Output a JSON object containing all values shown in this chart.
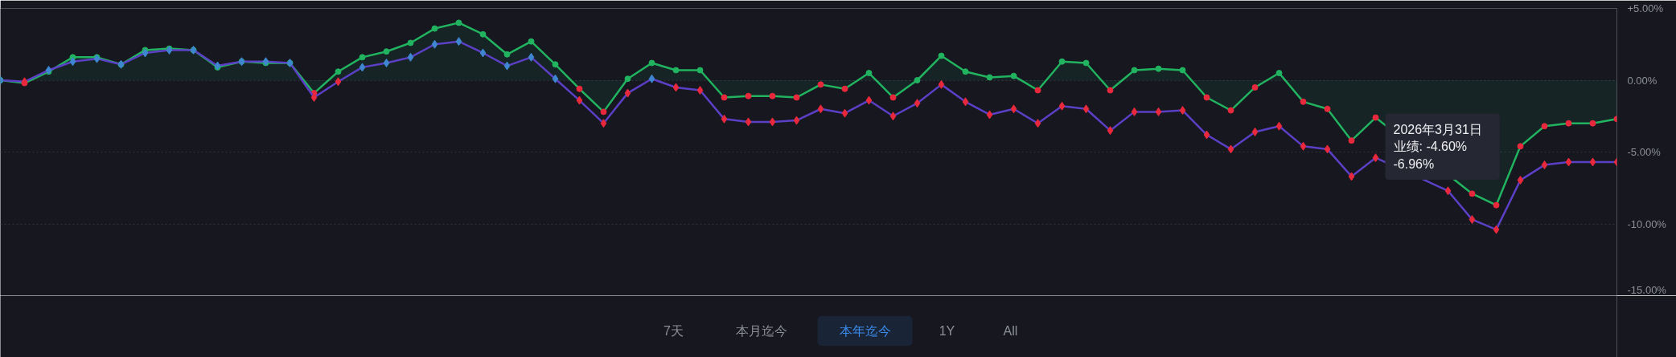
{
  "chart_data": {
    "type": "line",
    "categories": [
      null,
      null,
      null,
      null,
      null,
      null,
      null,
      null,
      null,
      null,
      null,
      null,
      null,
      null,
      null,
      null,
      null,
      null,
      null,
      null,
      null,
      null,
      null,
      null,
      null,
      null,
      null,
      null,
      null,
      null,
      null,
      null,
      null,
      null,
      null,
      null,
      null,
      null,
      null,
      null,
      null,
      null,
      null,
      null,
      null,
      null,
      null,
      null,
      null,
      null,
      null,
      null,
      null,
      null,
      null,
      null,
      null,
      null,
      null,
      null,
      null,
      null,
      null,
      null,
      null,
      null,
      null,
      null
    ],
    "ylim": [
      -15,
      5
    ],
    "yticks": [
      {
        "value": 5,
        "label": "+5.00%"
      },
      {
        "value": 0,
        "label": "0.00%"
      },
      {
        "value": -5,
        "label": "-5.00%"
      },
      {
        "value": -10,
        "label": "-10.00%"
      },
      {
        "value": -15,
        "label": "-15.00%"
      }
    ],
    "grid": "y",
    "tick_labels": "y",
    "series": [
      {
        "type": "area",
        "marker": "circle",
        "color": "#21b35f",
        "values": [
          0.0,
          -0.2,
          0.6,
          1.6,
          1.6,
          1.1,
          2.1,
          2.2,
          2.1,
          0.9,
          1.3,
          1.2,
          1.2,
          -0.9,
          0.6,
          1.6,
          2.0,
          2.6,
          3.6,
          4.0,
          3.2,
          1.8,
          2.7,
          1.1,
          -0.6,
          -2.2,
          0.1,
          1.2,
          0.7,
          0.7,
          -1.2,
          -1.1,
          -1.1,
          -1.2,
          -0.3,
          -0.6,
          0.5,
          -1.2,
          0.0,
          1.7,
          0.6,
          0.2,
          0.3,
          -0.7,
          1.3,
          1.2,
          -0.7,
          0.7,
          0.8,
          0.7,
          -1.2,
          -2.1,
          -0.5,
          0.5,
          -1.5,
          -2.0,
          -4.2,
          -2.6,
          null,
          null,
          null,
          -7.9,
          -8.7,
          -4.6,
          -3.2,
          -3.0,
          -3.0,
          -2.7
        ],
        "colors": [
          "#21b35f",
          "#e8283c",
          "#21b35f",
          "#21b35f",
          "#21b35f",
          "#21b35f",
          "#21b35f",
          "#21b35f",
          "#21b35f",
          "#21b35f",
          "#21b35f",
          "#21b35f",
          "#21b35f",
          "#e8283c",
          "#21b35f",
          "#21b35f",
          "#21b35f",
          "#21b35f",
          "#21b35f",
          "#21b35f",
          "#21b35f",
          "#21b35f",
          "#21b35f",
          "#21b35f",
          "#e8283c",
          "#e8283c",
          "#21b35f",
          "#21b35f",
          "#21b35f",
          "#21b35f",
          "#e8283c",
          "#e8283c",
          "#e8283c",
          "#e8283c",
          "#e8283c",
          "#e8283c",
          "#21b35f",
          "#e8283c",
          "#21b35f",
          "#21b35f",
          "#21b35f",
          "#21b35f",
          "#21b35f",
          "#e8283c",
          "#21b35f",
          "#21b35f",
          "#e8283c",
          "#21b35f",
          "#21b35f",
          "#21b35f",
          "#e8283c",
          "#e8283c",
          "#e8283c",
          "#21b35f",
          "#e8283c",
          "#e8283c",
          "#e8283c",
          "#e8283c",
          null,
          null,
          null,
          "#e8283c",
          "#e8283c",
          "#e8283c",
          "#e8283c",
          "#e8283c",
          "#e8283c",
          "#e8283c"
        ]
      },
      {
        "marker": "diamond",
        "color": "#5b3fc4",
        "values": [
          0.0,
          -0.1,
          0.7,
          1.3,
          1.5,
          1.1,
          1.9,
          2.1,
          2.1,
          1.0,
          1.3,
          1.3,
          1.2,
          -1.2,
          -0.1,
          0.9,
          1.2,
          1.6,
          2.5,
          2.7,
          1.9,
          1.0,
          1.6,
          0.1,
          -1.4,
          -3.0,
          -0.9,
          0.1,
          -0.5,
          -0.7,
          -2.7,
          -2.9,
          -2.9,
          -2.8,
          -2.0,
          -2.3,
          -1.4,
          -2.5,
          -1.6,
          -0.3,
          -1.5,
          -2.4,
          -2.0,
          -3.0,
          -1.8,
          -2.0,
          -3.5,
          -2.2,
          -2.2,
          -2.1,
          -3.8,
          -4.8,
          -3.6,
          -3.2,
          -4.6,
          -4.8,
          -6.7,
          -5.4,
          null,
          null,
          -7.7,
          -9.7,
          -10.4,
          -6.96,
          -5.9,
          -5.7,
          -5.7,
          -5.7
        ],
        "colors": [
          "#3f86d0",
          "#e8283c",
          "#3f86d0",
          "#3f86d0",
          "#3f86d0",
          "#3f86d0",
          "#3f86d0",
          "#3f86d0",
          "#3f86d0",
          "#3f86d0",
          "#3f86d0",
          "#3f86d0",
          "#3f86d0",
          "#e8283c",
          "#e8283c",
          "#3f86d0",
          "#3f86d0",
          "#3f86d0",
          "#3f86d0",
          "#3f86d0",
          "#3f86d0",
          "#3f86d0",
          "#3f86d0",
          "#3f86d0",
          "#e8283c",
          "#e8283c",
          "#e8283c",
          "#3f86d0",
          "#e8283c",
          "#e8283c",
          "#e8283c",
          "#e8283c",
          "#e8283c",
          "#e8283c",
          "#e8283c",
          "#e8283c",
          "#e8283c",
          "#e8283c",
          "#e8283c",
          "#e8283c",
          "#e8283c",
          "#e8283c",
          "#e8283c",
          "#e8283c",
          "#e8283c",
          "#e8283c",
          "#e8283c",
          "#e8283c",
          "#e8283c",
          "#e8283c",
          "#e8283c",
          "#e8283c",
          "#e8283c",
          "#e8283c",
          "#e8283c",
          "#e8283c",
          "#e8283c",
          "#e8283c",
          null,
          null,
          "#e8283c",
          "#e8283c",
          "#e8283c",
          "#e8283c",
          "#e8283c",
          "#e8283c",
          "#e8283c",
          "#e8283c"
        ]
      }
    ],
    "annotations": [
      "2026年3月31日",
      "业绩: -4.60%",
      "-6.96%",
      "7天",
      "本月迄今",
      "本年迄今",
      "1Y",
      "All"
    ]
  }
}
